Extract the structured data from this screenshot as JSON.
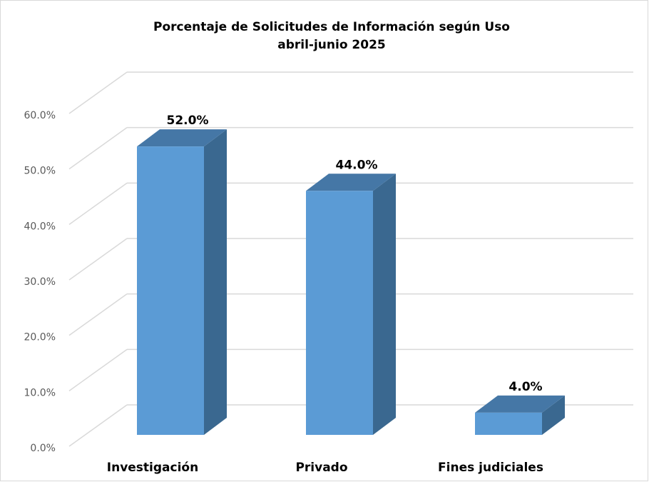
{
  "chart_data": {
    "type": "bar3d",
    "title": "Porcentaje de Solicitudes de Información según Uso",
    "subtitle": "abril-junio 2025",
    "categories": [
      "Investigación",
      "Privado",
      "Fines judiciales"
    ],
    "values": [
      52,
      44,
      4
    ],
    "value_labels": [
      "52.0%",
      "44.0%",
      "4.0%"
    ],
    "color": "#5b9bd5",
    "ylim": [
      0,
      60
    ],
    "yticks": [
      {
        "value": 0,
        "label": "0.0%"
      },
      {
        "value": 10,
        "label": "10.0%"
      },
      {
        "value": 20,
        "label": "20.0%"
      },
      {
        "value": 30,
        "label": "30.0%"
      },
      {
        "value": 40,
        "label": "40.0%"
      },
      {
        "value": 50,
        "label": "50.0%"
      },
      {
        "value": 60,
        "label": "60.0%"
      }
    ],
    "grid": true
  }
}
